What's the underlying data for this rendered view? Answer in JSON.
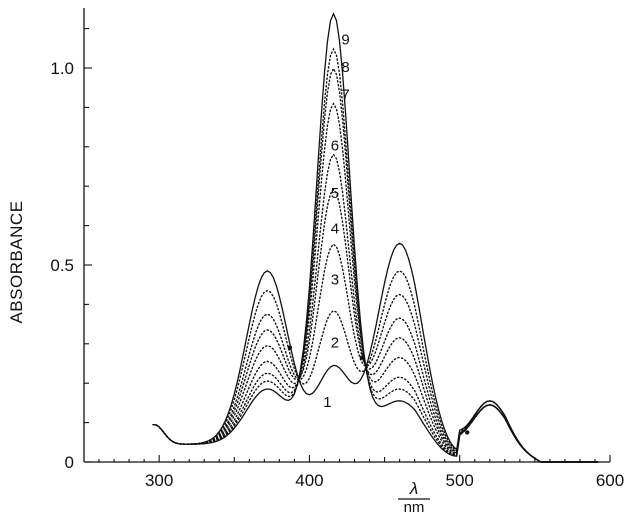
{
  "chart_data": {
    "type": "line",
    "title": "",
    "ylabel": "ABSORBANCE",
    "xlabel_top": "λ",
    "xlabel_bottom": "nm",
    "xlim": [
      250,
      600
    ],
    "ylim": [
      0,
      1.12
    ],
    "x_ticks": [
      {
        "value": 300,
        "label": "300"
      },
      {
        "value": 400,
        "label": "400"
      },
      {
        "value": 500,
        "label": "500"
      },
      {
        "value": 600,
        "label": "600"
      }
    ],
    "y_ticks": [
      {
        "value": 0,
        "label": "0"
      },
      {
        "value": 0.5,
        "label": "0.5"
      },
      {
        "value": 1.0,
        "label": "1.0"
      }
    ],
    "grid": false,
    "legend": "none",
    "isosbestic_points": [
      {
        "x": 387,
        "y": 0.29
      },
      {
        "x": 435,
        "y": 0.265
      },
      {
        "x": 505,
        "y": 0.075
      }
    ],
    "series": [
      {
        "name": "1",
        "style": "solid",
        "params": {
          "a372": 0.44,
          "a416": 0.19,
          "a460": 0.51,
          "a520": 0.11
        }
      },
      {
        "name": "2",
        "style": "dotted",
        "params": {
          "a372": 0.39,
          "a416": 0.33,
          "a460": 0.44,
          "a520": 0.11
        }
      },
      {
        "name": "3",
        "style": "dotted",
        "params": {
          "a372": 0.33,
          "a416": 0.5,
          "a460": 0.38,
          "a520": 0.1
        }
      },
      {
        "name": "4",
        "style": "dotted",
        "params": {
          "a372": 0.29,
          "a416": 0.64,
          "a460": 0.32,
          "a520": 0.1
        }
      },
      {
        "name": "5",
        "style": "dotted",
        "params": {
          "a372": 0.25,
          "a416": 0.73,
          "a460": 0.27,
          "a520": 0.1
        }
      },
      {
        "name": "6",
        "style": "dotted",
        "params": {
          "a372": 0.21,
          "a416": 0.86,
          "a460": 0.22,
          "a520": 0.1
        }
      },
      {
        "name": "7",
        "style": "dotted",
        "params": {
          "a372": 0.18,
          "a416": 0.95,
          "a460": 0.17,
          "a520": 0.1
        }
      },
      {
        "name": "8",
        "style": "dotted",
        "params": {
          "a372": 0.16,
          "a416": 1.0,
          "a460": 0.14,
          "a520": 0.1
        }
      },
      {
        "name": "9",
        "style": "solid",
        "params": {
          "a372": 0.14,
          "a416": 1.09,
          "a460": 0.11,
          "a520": 0.11
        }
      }
    ],
    "curve_labels": [
      {
        "text": "9",
        "x": 424,
        "y": 1.06
      },
      {
        "text": "8",
        "x": 424,
        "y": 0.99
      },
      {
        "text": "7",
        "x": 424,
        "y": 0.92
      },
      {
        "text": "6",
        "x": 417,
        "y": 0.79
      },
      {
        "text": "5",
        "x": 417,
        "y": 0.67
      },
      {
        "text": "4",
        "x": 417,
        "y": 0.58
      },
      {
        "text": "3",
        "x": 417,
        "y": 0.45
      },
      {
        "text": "2",
        "x": 417,
        "y": 0.29
      },
      {
        "text": "1",
        "x": 412,
        "y": 0.14
      }
    ]
  }
}
